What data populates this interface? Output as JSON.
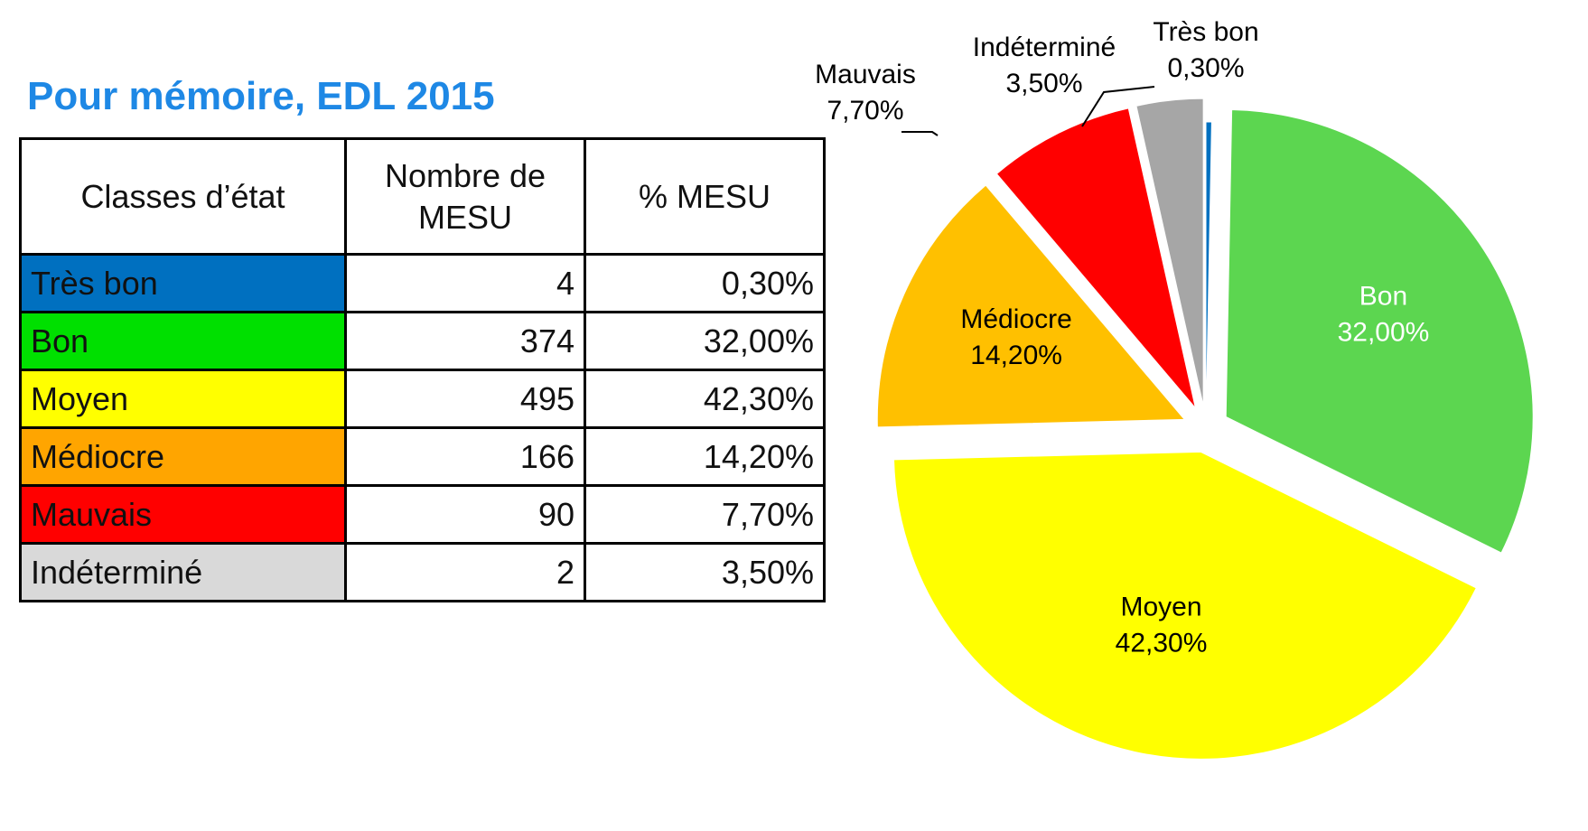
{
  "header": {
    "title": "Pour mémoire, EDL 2015"
  },
  "table": {
    "headers": [
      "Classes d’état",
      "Nombre de MESU",
      "% MESU"
    ],
    "rows": [
      {
        "classe": "Très bon",
        "nombre": "4",
        "pct": "0,30%",
        "color": "#0070c0",
        "text_color": "#111111"
      },
      {
        "classe": "Bon",
        "nombre": "374",
        "pct": "32,00%",
        "color": "#00e000",
        "text_color": "#111111"
      },
      {
        "classe": "Moyen",
        "nombre": "495",
        "pct": "42,30%",
        "color": "#ffff00",
        "text_color": "#111111"
      },
      {
        "classe": "Médiocre",
        "nombre": "166",
        "pct": "14,20%",
        "color": "#ffa500",
        "text_color": "#111111"
      },
      {
        "classe": "Mauvais",
        "nombre": "90",
        "pct": "7,70%",
        "color": "#ff0000",
        "text_color": "#111111"
      },
      {
        "classe": "Indéterminé",
        "nombre": "2",
        "pct": "3,50%",
        "color": "#d9d9d9",
        "text_color": "#111111"
      }
    ]
  },
  "chart_data": {
    "type": "pie",
    "title": "",
    "slices": [
      {
        "label": "Très bon",
        "value": 0.3,
        "display": "0,30%",
        "color": "#0070c0",
        "exploded": false,
        "label_inside": false,
        "text_color": "#000000"
      },
      {
        "label": "Bon",
        "value": 32.0,
        "display": "32,00%",
        "color": "#5cd650",
        "exploded": true,
        "label_inside": true,
        "text_color": "#ffffff"
      },
      {
        "label": "Moyen",
        "value": 42.3,
        "display": "42,30%",
        "color": "#ffff00",
        "exploded": true,
        "label_inside": true,
        "text_color": "#000000"
      },
      {
        "label": "Médiocre",
        "value": 14.2,
        "display": "14,20%",
        "color": "#ffc000",
        "exploded": true,
        "label_inside": true,
        "text_color": "#000000"
      },
      {
        "label": "Mauvais",
        "value": 7.7,
        "display": "7,70%",
        "color": "#ff0000",
        "exploded": true,
        "label_inside": false,
        "text_color": "#000000"
      },
      {
        "label": "Indéterminé",
        "value": 3.5,
        "display": "3,50%",
        "color": "#a6a6a6",
        "exploded": true,
        "label_inside": false,
        "text_color": "#000000"
      }
    ],
    "start": "12 o'clock",
    "direction": "clockwise",
    "legend": "none"
  }
}
